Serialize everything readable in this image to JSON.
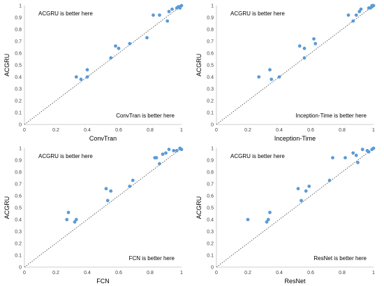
{
  "chart_data": [
    {
      "type": "scatter",
      "xlabel": "ConvTran",
      "ylabel": "ACGRU",
      "xlim": [
        0,
        1
      ],
      "ylim": [
        0,
        1
      ],
      "xticks": [
        "0",
        "0.2",
        "0.4",
        "0.6",
        "0.8",
        "1"
      ],
      "yticks": [
        "0",
        "0.1",
        "0.2",
        "0.3",
        "0.4",
        "0.5",
        "0.6",
        "0.7",
        "0.8",
        "0.9",
        "1"
      ],
      "annotations": {
        "top_left": "ACGRU is better here",
        "bottom_right": "ConvTran is better here"
      },
      "diagonal": true,
      "marker_color": "#5B9BD5",
      "points": [
        [
          0.33,
          0.4
        ],
        [
          0.36,
          0.38
        ],
        [
          0.4,
          0.4
        ],
        [
          0.4,
          0.46
        ],
        [
          0.55,
          0.56
        ],
        [
          0.58,
          0.66
        ],
        [
          0.6,
          0.64
        ],
        [
          0.67,
          0.68
        ],
        [
          0.78,
          0.73
        ],
        [
          0.82,
          0.92
        ],
        [
          0.86,
          0.92
        ],
        [
          0.91,
          0.87
        ],
        [
          0.92,
          0.95
        ],
        [
          0.94,
          0.97
        ],
        [
          0.97,
          0.98
        ],
        [
          0.98,
          0.99
        ],
        [
          0.99,
          0.99
        ],
        [
          1.0,
          1.0
        ],
        [
          0.99,
          0.98
        ]
      ]
    },
    {
      "type": "scatter",
      "xlabel": "Inception-Time",
      "ylabel": "ACGRU",
      "xlim": [
        0,
        1
      ],
      "ylim": [
        0,
        1
      ],
      "xticks": [
        "0",
        "0.2",
        "0.4",
        "0.6",
        "0.8",
        "1"
      ],
      "yticks": [
        "0",
        "0.1",
        "0.2",
        "0.3",
        "0.4",
        "0.5",
        "0.6",
        "0.7",
        "0.8",
        "0.9",
        "1"
      ],
      "annotations": {
        "top_left": "ACGRU is better here",
        "bottom_right": "Inception-Time is better here"
      },
      "diagonal": true,
      "marker_color": "#5B9BD5",
      "points": [
        [
          0.27,
          0.4
        ],
        [
          0.34,
          0.46
        ],
        [
          0.35,
          0.38
        ],
        [
          0.4,
          0.4
        ],
        [
          0.53,
          0.66
        ],
        [
          0.56,
          0.64
        ],
        [
          0.56,
          0.56
        ],
        [
          0.62,
          0.72
        ],
        [
          0.63,
          0.68
        ],
        [
          0.84,
          0.92
        ],
        [
          0.87,
          0.87
        ],
        [
          0.89,
          0.92
        ],
        [
          0.91,
          0.95
        ],
        [
          0.92,
          0.97
        ],
        [
          0.97,
          0.98
        ],
        [
          0.98,
          0.98
        ],
        [
          0.99,
          0.99
        ],
        [
          1.0,
          1.0
        ],
        [
          0.99,
          1.0
        ]
      ]
    },
    {
      "type": "scatter",
      "xlabel": "FCN",
      "ylabel": "ACGRU",
      "xlim": [
        0,
        1
      ],
      "ylim": [
        0,
        1
      ],
      "xticks": [
        "0",
        "0.2",
        "0.4",
        "0.6",
        "0.8",
        "1"
      ],
      "yticks": [
        "0",
        "0.1",
        "0.2",
        "0.3",
        "0.4",
        "0.5",
        "0.6",
        "0.7",
        "0.8",
        "0.9",
        "1"
      ],
      "annotations": {
        "top_left": "ACGRU is better here",
        "bottom_right": "FCN is better here"
      },
      "diagonal": true,
      "marker_color": "#5B9BD5",
      "points": [
        [
          0.27,
          0.4
        ],
        [
          0.28,
          0.46
        ],
        [
          0.32,
          0.38
        ],
        [
          0.33,
          0.4
        ],
        [
          0.52,
          0.66
        ],
        [
          0.53,
          0.56
        ],
        [
          0.55,
          0.64
        ],
        [
          0.67,
          0.68
        ],
        [
          0.69,
          0.73
        ],
        [
          0.83,
          0.92
        ],
        [
          0.84,
          0.92
        ],
        [
          0.86,
          0.87
        ],
        [
          0.88,
          0.95
        ],
        [
          0.9,
          0.96
        ],
        [
          0.92,
          0.99
        ],
        [
          0.95,
          0.98
        ],
        [
          0.97,
          0.98
        ],
        [
          0.99,
          1.0
        ],
        [
          1.0,
          0.99
        ]
      ]
    },
    {
      "type": "scatter",
      "xlabel": "ResNet",
      "ylabel": "ACGRU",
      "xlim": [
        0,
        1
      ],
      "ylim": [
        0,
        1
      ],
      "xticks": [
        "0",
        "0.2",
        "0.4",
        "0.6",
        "0.8",
        "1"
      ],
      "yticks": [
        "0",
        "0.1",
        "0.2",
        "0.3",
        "0.4",
        "0.5",
        "0.6",
        "0.7",
        "0.8",
        "0.9",
        "1"
      ],
      "annotations": {
        "top_left": "ACGRU is better here",
        "bottom_right": "ResNet is better here"
      },
      "diagonal": true,
      "marker_color": "#5B9BD5",
      "points": [
        [
          0.2,
          0.4
        ],
        [
          0.32,
          0.38
        ],
        [
          0.33,
          0.4
        ],
        [
          0.34,
          0.46
        ],
        [
          0.52,
          0.66
        ],
        [
          0.54,
          0.56
        ],
        [
          0.57,
          0.64
        ],
        [
          0.59,
          0.68
        ],
        [
          0.72,
          0.73
        ],
        [
          0.74,
          0.92
        ],
        [
          0.82,
          0.92
        ],
        [
          0.87,
          0.96
        ],
        [
          0.89,
          0.94
        ],
        [
          0.9,
          0.88
        ],
        [
          0.93,
          0.99
        ],
        [
          0.96,
          0.98
        ],
        [
          0.97,
          0.97
        ],
        [
          0.99,
          0.99
        ],
        [
          1.0,
          1.0
        ]
      ]
    }
  ]
}
